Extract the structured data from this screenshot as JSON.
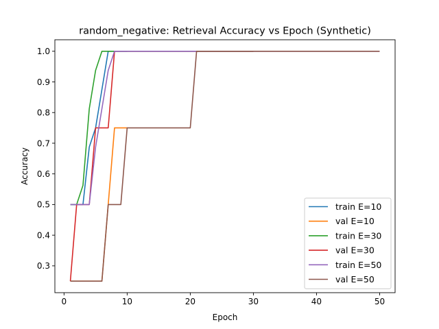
{
  "chart_data": {
    "type": "line",
    "title": "random_negative: Retrieval Accuracy vs Epoch (Synthetic)",
    "xlabel": "Epoch",
    "ylabel": "Accuracy",
    "xlim": [
      -1.45,
      52.45
    ],
    "ylim": [
      0.2125,
      1.0375
    ],
    "xticks": [
      0,
      10,
      20,
      30,
      40,
      50
    ],
    "yticks": [
      0.3,
      0.4,
      0.5,
      0.6,
      0.7,
      0.8,
      0.9,
      1.0
    ],
    "ytick_labels": [
      "0.3",
      "0.4",
      "0.5",
      "0.6",
      "0.7",
      "0.8",
      "0.9",
      "1.0"
    ],
    "legend_position": "lower-right",
    "series": [
      {
        "name": "train E=10",
        "color": "#1f77b4",
        "x": [
          1,
          2,
          3,
          4,
          5,
          6,
          7,
          8,
          9,
          10
        ],
        "y": [
          0.5,
          0.5,
          0.5,
          0.6875,
          0.75,
          0.875,
          1.0,
          1.0,
          1.0,
          1.0
        ]
      },
      {
        "name": "val E=10",
        "color": "#ff7f0e",
        "x": [
          1,
          2,
          3,
          4,
          5,
          6,
          7,
          8,
          9,
          10
        ],
        "y": [
          0.25,
          0.25,
          0.25,
          0.25,
          0.25,
          0.25,
          0.5,
          0.75,
          0.75,
          0.75
        ]
      },
      {
        "name": "train E=30",
        "color": "#2ca02c",
        "x": [
          1,
          2,
          3,
          4,
          5,
          6,
          7,
          8,
          9,
          10,
          11,
          12,
          13,
          14,
          15,
          16,
          17,
          18,
          19,
          20,
          21,
          22,
          23,
          24,
          25,
          26,
          27,
          28,
          29,
          30
        ],
        "y": [
          0.5,
          0.5,
          0.5625,
          0.8125,
          0.9375,
          1.0,
          1.0,
          1.0,
          1.0,
          1.0,
          1.0,
          1.0,
          1.0,
          1.0,
          1.0,
          1.0,
          1.0,
          1.0,
          1.0,
          1.0,
          1.0,
          1.0,
          1.0,
          1.0,
          1.0,
          1.0,
          1.0,
          1.0,
          1.0,
          1.0
        ]
      },
      {
        "name": "val E=30",
        "color": "#d62728",
        "x": [
          1,
          2,
          3,
          4,
          5,
          6,
          7,
          8,
          9,
          10,
          11,
          12,
          13,
          14,
          15,
          16,
          17,
          18,
          19,
          20,
          21,
          22,
          23,
          24,
          25,
          26,
          27,
          28,
          29,
          30
        ],
        "y": [
          0.25,
          0.5,
          0.5,
          0.5,
          0.75,
          0.75,
          0.75,
          1.0,
          1.0,
          1.0,
          1.0,
          1.0,
          1.0,
          1.0,
          1.0,
          1.0,
          1.0,
          1.0,
          1.0,
          1.0,
          1.0,
          1.0,
          1.0,
          1.0,
          1.0,
          1.0,
          1.0,
          1.0,
          1.0,
          1.0
        ]
      },
      {
        "name": "train E=50",
        "color": "#9467bd",
        "x": [
          1,
          2,
          3,
          4,
          5,
          6,
          7,
          8,
          9,
          10,
          11,
          12,
          13,
          14,
          15,
          16,
          17,
          18,
          19,
          20,
          21,
          22,
          23,
          24,
          25,
          26,
          27,
          28,
          29,
          30,
          31,
          32,
          33,
          34,
          35,
          36,
          37,
          38,
          39,
          40,
          41,
          42,
          43,
          44,
          45,
          46,
          47,
          48,
          49,
          50
        ],
        "y": [
          0.5,
          0.5,
          0.5,
          0.5,
          0.6875,
          0.8125,
          0.9375,
          1.0,
          1.0,
          1.0,
          1.0,
          1.0,
          1.0,
          1.0,
          1.0,
          1.0,
          1.0,
          1.0,
          1.0,
          1.0,
          1.0,
          1.0,
          1.0,
          1.0,
          1.0,
          1.0,
          1.0,
          1.0,
          1.0,
          1.0,
          1.0,
          1.0,
          1.0,
          1.0,
          1.0,
          1.0,
          1.0,
          1.0,
          1.0,
          1.0,
          1.0,
          1.0,
          1.0,
          1.0,
          1.0,
          1.0,
          1.0,
          1.0,
          1.0,
          1.0
        ]
      },
      {
        "name": "val E=50",
        "color": "#8c564b",
        "x": [
          1,
          2,
          3,
          4,
          5,
          6,
          7,
          8,
          9,
          10,
          11,
          12,
          13,
          14,
          15,
          16,
          17,
          18,
          19,
          20,
          21,
          22,
          23,
          24,
          25,
          26,
          27,
          28,
          29,
          30,
          31,
          32,
          33,
          34,
          35,
          36,
          37,
          38,
          39,
          40,
          41,
          42,
          43,
          44,
          45,
          46,
          47,
          48,
          49,
          50
        ],
        "y": [
          0.25,
          0.25,
          0.25,
          0.25,
          0.25,
          0.25,
          0.5,
          0.5,
          0.5,
          0.75,
          0.75,
          0.75,
          0.75,
          0.75,
          0.75,
          0.75,
          0.75,
          0.75,
          0.75,
          0.75,
          1.0,
          1.0,
          1.0,
          1.0,
          1.0,
          1.0,
          1.0,
          1.0,
          1.0,
          1.0,
          1.0,
          1.0,
          1.0,
          1.0,
          1.0,
          1.0,
          1.0,
          1.0,
          1.0,
          1.0,
          1.0,
          1.0,
          1.0,
          1.0,
          1.0,
          1.0,
          1.0,
          1.0,
          1.0,
          1.0
        ]
      }
    ]
  }
}
